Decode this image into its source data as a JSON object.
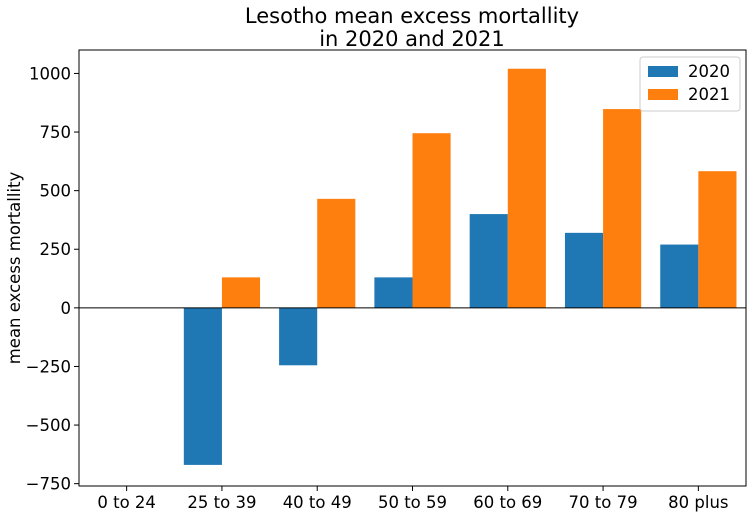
{
  "chart_data": {
    "type": "bar",
    "title": "Lesotho mean excess mortallity",
    "subtitle": "in 2020 and 2021",
    "xlabel": "",
    "ylabel": "mean excess mortallity",
    "categories": [
      "0 to 24",
      "25 to 39",
      "40 to 49",
      "50 to 59",
      "60 to 69",
      "70 to 79",
      "80 plus"
    ],
    "series": [
      {
        "name": "2020",
        "color": "#1f77b4",
        "values": [
          0,
          -670,
          -245,
          130,
          400,
          320,
          270
        ]
      },
      {
        "name": "2021",
        "color": "#ff7f0e",
        "values": [
          0,
          130,
          465,
          745,
          1020,
          848,
          583
        ]
      }
    ],
    "ylim": [
      -760,
      1100
    ],
    "yticks": [
      -750,
      -500,
      -250,
      0,
      250,
      500,
      750,
      1000
    ],
    "ytick_labels": [
      "−750",
      "−500",
      "−250",
      "0",
      "250",
      "500",
      "750",
      "1000"
    ],
    "grid": false,
    "zero_line": true,
    "legend": "top-right"
  }
}
